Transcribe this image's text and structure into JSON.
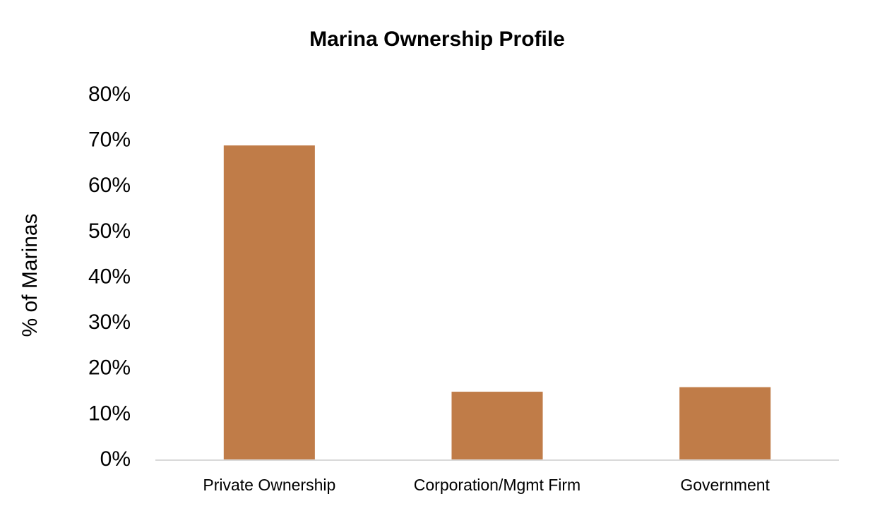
{
  "chart_data": {
    "type": "bar",
    "title": "Marina Ownership Profile",
    "y_label": "% of Marinas",
    "categories": [
      "Private Ownership",
      "Corporation/Mgmt Firm",
      "Government"
    ],
    "values": [
      69,
      15,
      16
    ],
    "color": "#c07c48",
    "ylim": [
      0,
      80
    ],
    "yticks": [
      {
        "value": 0,
        "label": "0%"
      },
      {
        "value": 10,
        "label": "10%"
      },
      {
        "value": 20,
        "label": "20%"
      },
      {
        "value": 30,
        "label": "30%"
      },
      {
        "value": 40,
        "label": "40%"
      },
      {
        "value": 50,
        "label": "50%"
      },
      {
        "value": 60,
        "label": "60%"
      },
      {
        "value": 70,
        "label": "70%"
      },
      {
        "value": 80,
        "label": "80%"
      }
    ],
    "grid": false
  }
}
